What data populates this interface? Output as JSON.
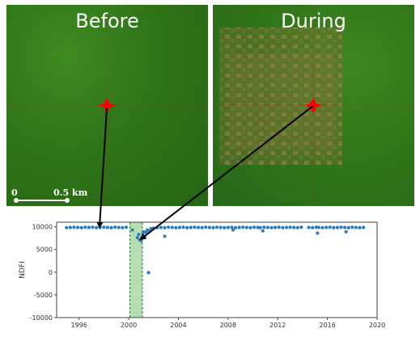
{
  "panels": {
    "before_title": "Before",
    "during_title": "During",
    "scalebar": {
      "start_label": "0",
      "end_label": "0.5 km"
    }
  },
  "colors": {
    "forest": "#2f7418",
    "disturbance": "#a0784a",
    "marker": "#ff0000",
    "points": "#2b7bba",
    "highlight": "#9fd39a",
    "highlight_edge": "#1b7a2a"
  },
  "chart_data": {
    "type": "scatter",
    "ylabel": "NDFI",
    "xlabel": "",
    "xlim": [
      1994.2,
      2020
    ],
    "ylim": [
      -10000,
      11000
    ],
    "xticks": [
      1996,
      2000,
      2004,
      2008,
      2012,
      2016,
      2020
    ],
    "yticks": [
      10000,
      5000,
      0,
      -5000,
      -10000
    ],
    "grid": false,
    "highlight_span": [
      2000.1,
      2001.1
    ],
    "series": [
      {
        "x": [
          1995.0,
          1995.3,
          1995.6,
          1995.9,
          1996.2,
          1996.5,
          1996.8,
          1997.1,
          1997.4,
          1997.7,
          1998.0,
          1998.3,
          1998.6,
          1998.9,
          1999.2,
          1999.5,
          1999.8,
          2000.3,
          2000.7,
          2000.8,
          2000.9,
          2001.0,
          2001.05,
          2001.15,
          2001.2,
          2001.3,
          2001.4,
          2001.5,
          2001.6,
          2001.7,
          2001.8,
          2002.0,
          2002.3,
          2002.6,
          2002.9,
          2003.2,
          2003.5,
          2003.8,
          2004.1,
          2004.4,
          2004.7,
          2005.0,
          2005.3,
          2005.6,
          2005.9,
          2006.2,
          2006.5,
          2006.8,
          2007.1,
          2007.4,
          2007.7,
          2008.0,
          2008.3,
          2008.6,
          2008.9,
          2009.2,
          2009.5,
          2009.8,
          2010.1,
          2010.4,
          2010.6,
          2010.9,
          2011.2,
          2011.5,
          2011.8,
          2012.1,
          2012.4,
          2012.7,
          2013.0,
          2013.3,
          2013.6,
          2013.9,
          2014.5,
          2014.8,
          2015.1,
          2015.3,
          2015.6,
          2015.9,
          2016.2,
          2016.5,
          2016.8,
          2017.1,
          2017.4,
          2017.7,
          2018.0,
          2018.3,
          2018.6,
          2018.9,
          2002.9,
          2008.4,
          2010.8,
          2015.2,
          2017.5
        ],
        "y": [
          9800,
          9850,
          9900,
          9850,
          9800,
          9900,
          9850,
          9900,
          9800,
          9850,
          9900,
          9850,
          9800,
          9900,
          9850,
          9800,
          9900,
          9300,
          7600,
          8300,
          7100,
          6900,
          7600,
          8400,
          8900,
          7900,
          8800,
          9300,
          -100,
          9000,
          9600,
          9700,
          9800,
          9850,
          9800,
          9900,
          9850,
          9800,
          9850,
          9900,
          9800,
          9850,
          9900,
          9850,
          9800,
          9900,
          9850,
          9800,
          9900,
          9850,
          9800,
          9850,
          9900,
          9800,
          9850,
          9900,
          9850,
          9800,
          9900,
          9850,
          9800,
          9900,
          9850,
          9800,
          9850,
          9900,
          9800,
          9850,
          9900,
          9850,
          9800,
          9900,
          9850,
          9800,
          9900,
          9850,
          9800,
          9850,
          9900,
          9800,
          9850,
          9900,
          9850,
          9800,
          9900,
          9850,
          9800,
          9850,
          7900,
          9300,
          9100,
          8600,
          8900
        ]
      }
    ]
  }
}
